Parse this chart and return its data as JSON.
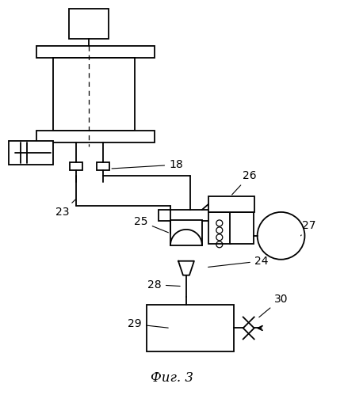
{
  "title": "Фиг. 3",
  "background_color": "#ffffff",
  "line_color": "#000000",
  "lw": 1.3
}
